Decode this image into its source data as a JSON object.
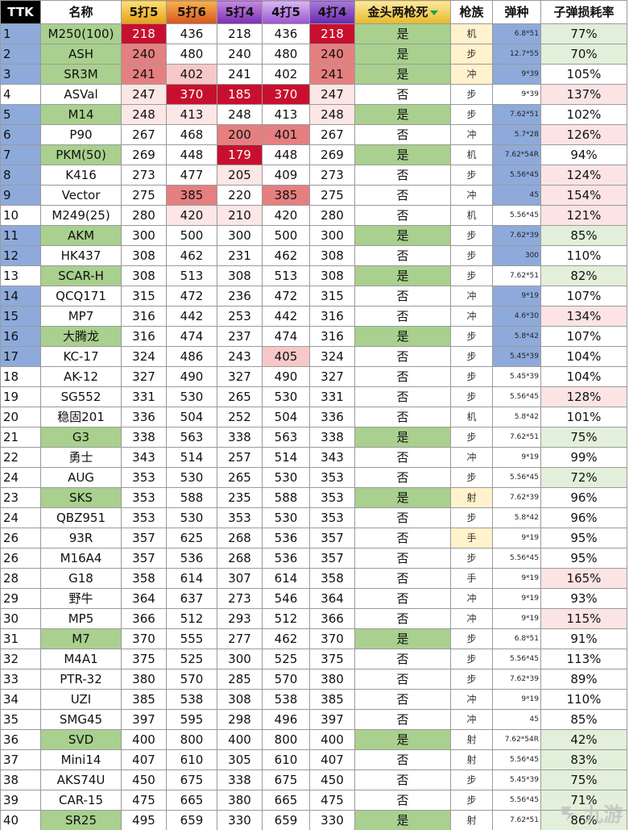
{
  "headers": [
    "TTK",
    "名称",
    "5打5",
    "5打6",
    "5打4",
    "4打5",
    "4打4",
    "金头两枪死",
    "枪族",
    "弹种",
    "子弹损耗率"
  ],
  "palette": {
    "idx_blue": "#8eaadb",
    "name_green": "#a9d08e",
    "gold_green": "#a9d08e",
    "red1": "#c8102e",
    "red2": "#e57f80",
    "red3": "#f7c8c8",
    "red4": "#fce6e6",
    "lavender": "#b08fd6",
    "ammo_blue": "#8eaadb",
    "cls_yellow": "#fff2cc",
    "pct_green": "#e2efda",
    "pct_pink": "#fce4e4"
  },
  "rows": [
    {
      "i": "1",
      "n": "M250(100)",
      "a": "218",
      "b": "436",
      "c": "218",
      "d": "436",
      "e": "218",
      "g": "是",
      "k": "机",
      "m": "6.8*51",
      "p": "77%",
      "ib": 1,
      "ng": 1,
      "gg": 1,
      "ky": 1,
      "ma": 1,
      "pc": "g",
      "hl": {
        "a": "red1",
        "e": "red1"
      }
    },
    {
      "i": "2",
      "n": "ASH",
      "a": "240",
      "b": "480",
      "c": "240",
      "d": "480",
      "e": "240",
      "g": "是",
      "k": "步",
      "m": "12.7*55",
      "p": "70%",
      "ib": 1,
      "ng": 1,
      "gg": 1,
      "ky": 1,
      "ma": 1,
      "pc": "g",
      "hl": {
        "a": "red2",
        "e": "red2"
      }
    },
    {
      "i": "3",
      "n": "SR3M",
      "a": "241",
      "b": "402",
      "c": "241",
      "d": "402",
      "e": "241",
      "g": "是",
      "k": "冲",
      "m": "9*39",
      "p": "105%",
      "ib": 1,
      "ng": 1,
      "gg": 1,
      "ky": 1,
      "ma": 1,
      "pc": "",
      "hl": {
        "a": "red2",
        "b": "red3",
        "e": "red2"
      }
    },
    {
      "i": "4",
      "n": "ASVal",
      "a": "247",
      "b": "370",
      "c": "185",
      "d": "370",
      "e": "247",
      "g": "否",
      "k": "步",
      "m": "9*39",
      "p": "137%",
      "ib": 0,
      "ng": 0,
      "gg": 0,
      "ky": 0,
      "ma": 0,
      "pc": "p",
      "hl": {
        "a": "red4",
        "b": "red1",
        "c": "red1",
        "d": "red1",
        "e": "red4"
      }
    },
    {
      "i": "5",
      "n": "M14",
      "a": "248",
      "b": "413",
      "c": "248",
      "d": "413",
      "e": "248",
      "g": "是",
      "k": "步",
      "m": "7.62*51",
      "p": "102%",
      "ib": 1,
      "ng": 1,
      "gg": 1,
      "ky": 0,
      "ma": 1,
      "pc": "",
      "hl": {
        "a": "red4",
        "b": "red4",
        "e": "red4"
      }
    },
    {
      "i": "6",
      "n": "P90",
      "a": "267",
      "b": "468",
      "c": "200",
      "d": "401",
      "e": "267",
      "g": "否",
      "k": "冲",
      "m": "5.7*28",
      "p": "126%",
      "ib": 1,
      "ng": 0,
      "gg": 0,
      "ky": 0,
      "ma": 1,
      "pc": "p",
      "hl": {
        "c": "red2",
        "d": "red2"
      }
    },
    {
      "i": "7",
      "n": "PKM(50)",
      "a": "269",
      "b": "448",
      "c": "179",
      "d": "448",
      "e": "269",
      "g": "是",
      "k": "机",
      "m": "7.62*54R",
      "p": "94%",
      "ib": 1,
      "ng": 1,
      "gg": 1,
      "ky": 0,
      "ma": 1,
      "pc": "",
      "hl": {
        "c": "red1"
      }
    },
    {
      "i": "8",
      "n": "K416",
      "a": "273",
      "b": "477",
      "c": "205",
      "d": "409",
      "e": "273",
      "g": "否",
      "k": "步",
      "m": "5.56*45",
      "p": "124%",
      "ib": 1,
      "ng": 0,
      "gg": 0,
      "ky": 0,
      "ma": 1,
      "pc": "p",
      "hl": {
        "c": "red4"
      }
    },
    {
      "i": "9",
      "n": "Vector",
      "a": "275",
      "b": "385",
      "c": "220",
      "d": "385",
      "e": "275",
      "g": "否",
      "k": "冲",
      "m": "45",
      "p": "154%",
      "ib": 1,
      "ng": 0,
      "gg": 0,
      "ky": 0,
      "ma": 1,
      "pc": "p",
      "hl": {
        "b": "red2",
        "d": "red2"
      }
    },
    {
      "i": "10",
      "n": "M249(25)",
      "a": "280",
      "b": "420",
      "c": "210",
      "d": "420",
      "e": "280",
      "g": "否",
      "k": "机",
      "m": "5.56*45",
      "p": "121%",
      "ib": 0,
      "ng": 0,
      "gg": 0,
      "ky": 0,
      "ma": 0,
      "pc": "p",
      "hl": {
        "b": "red4",
        "c": "red4"
      }
    },
    {
      "i": "11",
      "n": "AKM",
      "a": "300",
      "b": "500",
      "c": "300",
      "d": "500",
      "e": "300",
      "g": "是",
      "k": "步",
      "m": "7.62*39",
      "p": "85%",
      "ib": 1,
      "ng": 1,
      "gg": 1,
      "ky": 0,
      "ma": 1,
      "pc": "g",
      "hl": {}
    },
    {
      "i": "12",
      "n": "HK437",
      "a": "308",
      "b": "462",
      "c": "231",
      "d": "462",
      "e": "308",
      "g": "否",
      "k": "步",
      "m": "300",
      "p": "110%",
      "ib": 1,
      "ng": 0,
      "gg": 0,
      "ky": 0,
      "ma": 1,
      "pc": "",
      "hl": {}
    },
    {
      "i": "13",
      "n": "SCAR-H",
      "a": "308",
      "b": "513",
      "c": "308",
      "d": "513",
      "e": "308",
      "g": "是",
      "k": "步",
      "m": "7.62*51",
      "p": "82%",
      "ib": 0,
      "ng": 1,
      "gg": 1,
      "ky": 0,
      "ma": 0,
      "pc": "g",
      "hl": {}
    },
    {
      "i": "14",
      "n": "QCQ171",
      "a": "315",
      "b": "472",
      "c": "236",
      "d": "472",
      "e": "315",
      "g": "否",
      "k": "冲",
      "m": "9*19",
      "p": "107%",
      "ib": 1,
      "ng": 0,
      "gg": 0,
      "ky": 0,
      "ma": 1,
      "pc": "",
      "hl": {}
    },
    {
      "i": "15",
      "n": "MP7",
      "a": "316",
      "b": "442",
      "c": "253",
      "d": "442",
      "e": "316",
      "g": "否",
      "k": "冲",
      "m": "4.6*30",
      "p": "134%",
      "ib": 1,
      "ng": 0,
      "gg": 0,
      "ky": 0,
      "ma": 1,
      "pc": "p",
      "hl": {}
    },
    {
      "i": "16",
      "n": "大腾龙",
      "a": "316",
      "b": "474",
      "c": "237",
      "d": "474",
      "e": "316",
      "g": "是",
      "k": "步",
      "m": "5.8*42",
      "p": "107%",
      "ib": 1,
      "ng": 1,
      "gg": 1,
      "ky": 0,
      "ma": 1,
      "pc": "",
      "hl": {}
    },
    {
      "i": "17",
      "n": "KC-17",
      "a": "324",
      "b": "486",
      "c": "243",
      "d": "405",
      "e": "324",
      "g": "否",
      "k": "步",
      "m": "5.45*39",
      "p": "104%",
      "ib": 1,
      "ng": 0,
      "gg": 0,
      "ky": 0,
      "ma": 1,
      "pc": "",
      "hl": {
        "d": "red3"
      }
    },
    {
      "i": "18",
      "n": "AK-12",
      "a": "327",
      "b": "490",
      "c": "327",
      "d": "490",
      "e": "327",
      "g": "否",
      "k": "步",
      "m": "5.45*39",
      "p": "104%",
      "ib": 0,
      "ng": 0,
      "gg": 0,
      "ky": 0,
      "ma": 0,
      "pc": "",
      "hl": {}
    },
    {
      "i": "19",
      "n": "SG552",
      "a": "331",
      "b": "530",
      "c": "265",
      "d": "530",
      "e": "331",
      "g": "否",
      "k": "步",
      "m": "5.56*45",
      "p": "128%",
      "ib": 0,
      "ng": 0,
      "gg": 0,
      "ky": 0,
      "ma": 0,
      "pc": "p",
      "hl": {}
    },
    {
      "i": "20",
      "n": "稳固201",
      "a": "336",
      "b": "504",
      "c": "252",
      "d": "504",
      "e": "336",
      "g": "否",
      "k": "机",
      "m": "5.8*42",
      "p": "101%",
      "ib": 0,
      "ng": 0,
      "gg": 0,
      "ky": 0,
      "ma": 0,
      "pc": "",
      "hl": {}
    },
    {
      "i": "21",
      "n": "G3",
      "a": "338",
      "b": "563",
      "c": "338",
      "d": "563",
      "e": "338",
      "g": "是",
      "k": "步",
      "m": "7.62*51",
      "p": "75%",
      "ib": 0,
      "ng": 1,
      "gg": 1,
      "ky": 0,
      "ma": 0,
      "pc": "g",
      "hl": {}
    },
    {
      "i": "22",
      "n": "勇士",
      "a": "343",
      "b": "514",
      "c": "257",
      "d": "514",
      "e": "343",
      "g": "否",
      "k": "冲",
      "m": "9*19",
      "p": "99%",
      "ib": 0,
      "ng": 0,
      "gg": 0,
      "ky": 0,
      "ma": 0,
      "pc": "",
      "hl": {}
    },
    {
      "i": "24",
      "n": "AUG",
      "a": "353",
      "b": "530",
      "c": "265",
      "d": "530",
      "e": "353",
      "g": "否",
      "k": "步",
      "m": "5.56*45",
      "p": "72%",
      "ib": 0,
      "ng": 0,
      "gg": 0,
      "ky": 0,
      "ma": 0,
      "pc": "g",
      "hl": {}
    },
    {
      "i": "23",
      "n": "SKS",
      "a": "353",
      "b": "588",
      "c": "235",
      "d": "588",
      "e": "353",
      "g": "是",
      "k": "射",
      "m": "7.62*39",
      "p": "96%",
      "ib": 0,
      "ng": 1,
      "gg": 1,
      "ky": 1,
      "ma": 0,
      "pc": "",
      "hl": {}
    },
    {
      "i": "24",
      "n": "QBZ951",
      "a": "353",
      "b": "530",
      "c": "353",
      "d": "530",
      "e": "353",
      "g": "否",
      "k": "步",
      "m": "5.8*42",
      "p": "96%",
      "ib": 0,
      "ng": 0,
      "gg": 0,
      "ky": 0,
      "ma": 0,
      "pc": "",
      "hl": {}
    },
    {
      "i": "26",
      "n": "93R",
      "a": "357",
      "b": "625",
      "c": "268",
      "d": "536",
      "e": "357",
      "g": "否",
      "k": "手",
      "m": "9*19",
      "p": "95%",
      "ib": 0,
      "ng": 0,
      "gg": 0,
      "ky": 1,
      "ma": 0,
      "pc": "",
      "hl": {}
    },
    {
      "i": "26",
      "n": "M16A4",
      "a": "357",
      "b": "536",
      "c": "268",
      "d": "536",
      "e": "357",
      "g": "否",
      "k": "步",
      "m": "5.56*45",
      "p": "95%",
      "ib": 0,
      "ng": 0,
      "gg": 0,
      "ky": 0,
      "ma": 0,
      "pc": "",
      "hl": {}
    },
    {
      "i": "28",
      "n": "G18",
      "a": "358",
      "b": "614",
      "c": "307",
      "d": "614",
      "e": "358",
      "g": "否",
      "k": "手",
      "m": "9*19",
      "p": "165%",
      "ib": 0,
      "ng": 0,
      "gg": 0,
      "ky": 0,
      "ma": 0,
      "pc": "p",
      "hl": {}
    },
    {
      "i": "29",
      "n": "野牛",
      "a": "364",
      "b": "637",
      "c": "273",
      "d": "546",
      "e": "364",
      "g": "否",
      "k": "冲",
      "m": "9*19",
      "p": "93%",
      "ib": 0,
      "ng": 0,
      "gg": 0,
      "ky": 0,
      "ma": 0,
      "pc": "",
      "hl": {}
    },
    {
      "i": "30",
      "n": "MP5",
      "a": "366",
      "b": "512",
      "c": "293",
      "d": "512",
      "e": "366",
      "g": "否",
      "k": "冲",
      "m": "9*19",
      "p": "115%",
      "ib": 0,
      "ng": 0,
      "gg": 0,
      "ky": 0,
      "ma": 0,
      "pc": "p",
      "hl": {}
    },
    {
      "i": "31",
      "n": "M7",
      "a": "370",
      "b": "555",
      "c": "277",
      "d": "462",
      "e": "370",
      "g": "是",
      "k": "步",
      "m": "6.8*51",
      "p": "91%",
      "ib": 0,
      "ng": 1,
      "gg": 1,
      "ky": 0,
      "ma": 0,
      "pc": "",
      "hl": {}
    },
    {
      "i": "32",
      "n": "M4A1",
      "a": "375",
      "b": "525",
      "c": "300",
      "d": "525",
      "e": "375",
      "g": "否",
      "k": "步",
      "m": "5.56*45",
      "p": "113%",
      "ib": 0,
      "ng": 0,
      "gg": 0,
      "ky": 0,
      "ma": 0,
      "pc": "",
      "hl": {}
    },
    {
      "i": "33",
      "n": "PTR-32",
      "a": "380",
      "b": "570",
      "c": "285",
      "d": "570",
      "e": "380",
      "g": "否",
      "k": "步",
      "m": "7.62*39",
      "p": "89%",
      "ib": 0,
      "ng": 0,
      "gg": 0,
      "ky": 0,
      "ma": 0,
      "pc": "",
      "hl": {}
    },
    {
      "i": "34",
      "n": "UZI",
      "a": "385",
      "b": "538",
      "c": "308",
      "d": "538",
      "e": "385",
      "g": "否",
      "k": "冲",
      "m": "9*19",
      "p": "110%",
      "ib": 0,
      "ng": 0,
      "gg": 0,
      "ky": 0,
      "ma": 0,
      "pc": "",
      "hl": {}
    },
    {
      "i": "35",
      "n": "SMG45",
      "a": "397",
      "b": "595",
      "c": "298",
      "d": "496",
      "e": "397",
      "g": "否",
      "k": "冲",
      "m": "45",
      "p": "85%",
      "ib": 0,
      "ng": 0,
      "gg": 0,
      "ky": 0,
      "ma": 0,
      "pc": "",
      "hl": {}
    },
    {
      "i": "36",
      "n": "SVD",
      "a": "400",
      "b": "800",
      "c": "400",
      "d": "800",
      "e": "400",
      "g": "是",
      "k": "射",
      "m": "7.62*54R",
      "p": "42%",
      "ib": 0,
      "ng": 1,
      "gg": 1,
      "ky": 0,
      "ma": 0,
      "pc": "g",
      "hl": {}
    },
    {
      "i": "37",
      "n": "Mini14",
      "a": "407",
      "b": "610",
      "c": "305",
      "d": "610",
      "e": "407",
      "g": "否",
      "k": "射",
      "m": "5.56*45",
      "p": "83%",
      "ib": 0,
      "ng": 0,
      "gg": 0,
      "ky": 0,
      "ma": 0,
      "pc": "g",
      "hl": {}
    },
    {
      "i": "38",
      "n": "AKS74U",
      "a": "450",
      "b": "675",
      "c": "338",
      "d": "675",
      "e": "450",
      "g": "否",
      "k": "步",
      "m": "5.45*39",
      "p": "75%",
      "ib": 0,
      "ng": 0,
      "gg": 0,
      "ky": 0,
      "ma": 0,
      "pc": "g",
      "hl": {}
    },
    {
      "i": "39",
      "n": "CAR-15",
      "a": "475",
      "b": "665",
      "c": "380",
      "d": "665",
      "e": "475",
      "g": "否",
      "k": "步",
      "m": "5.56*45",
      "p": "71%",
      "ib": 0,
      "ng": 0,
      "gg": 0,
      "ky": 0,
      "ma": 0,
      "pc": "g",
      "hl": {}
    },
    {
      "i": "40",
      "n": "SR25",
      "a": "495",
      "b": "659",
      "c": "330",
      "d": "659",
      "e": "330",
      "g": "是",
      "k": "射",
      "m": "7.62*51",
      "p": "86%",
      "ib": 0,
      "ng": 1,
      "gg": 1,
      "ky": 0,
      "ma": 0,
      "pc": "g",
      "hl": {}
    }
  ],
  "watermark": {
    "text": "九游"
  }
}
